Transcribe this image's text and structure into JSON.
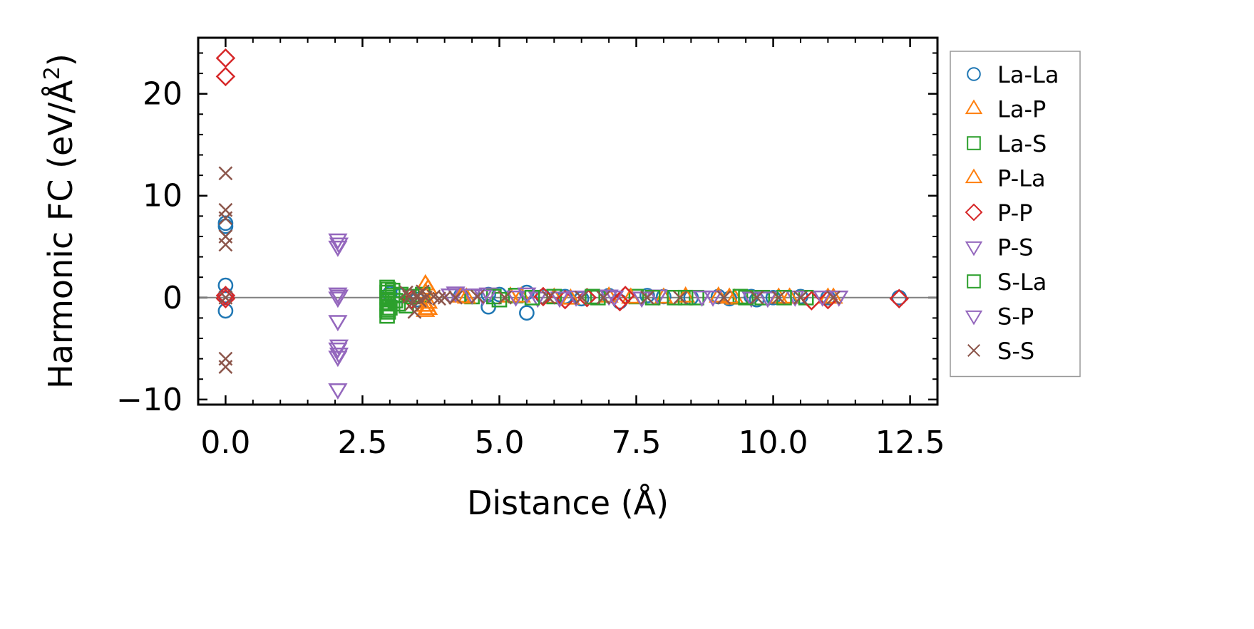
{
  "chart_data": {
    "type": "scatter",
    "title": "",
    "xlabel": "Distance (Å)",
    "ylabel_main": "Harmonic FC (eV/Å",
    "ylabel_sup": "2",
    "ylabel_end": ")",
    "xlim": [
      -0.5,
      13.0
    ],
    "ylim": [
      -10.5,
      25.5
    ],
    "xticks": [
      0.0,
      2.5,
      5.0,
      7.5,
      10.0,
      12.5
    ],
    "xtick_labels": [
      "0.0",
      "2.5",
      "5.0",
      "7.5",
      "10.0",
      "12.5"
    ],
    "yticks": [
      -10,
      0,
      10,
      20
    ],
    "ytick_labels": [
      "−10",
      "0",
      "10",
      "20"
    ],
    "zero_line": true,
    "grid": false,
    "legend_position": "outside-right",
    "series": [
      {
        "name": "La-La",
        "marker": "circle",
        "color": "#1f77b4",
        "points": [
          [
            0,
            7.3
          ],
          [
            0,
            7.0
          ],
          [
            0,
            1.2
          ],
          [
            0,
            0.2
          ],
          [
            0,
            -1.3
          ],
          [
            3.0,
            0.4
          ],
          [
            3.2,
            0.2
          ],
          [
            3.5,
            -0.2
          ],
          [
            4.3,
            0.2
          ],
          [
            4.8,
            0.3
          ],
          [
            4.8,
            -0.9
          ],
          [
            5.0,
            0.3
          ],
          [
            5.5,
            0.5
          ],
          [
            5.5,
            -1.5
          ],
          [
            5.8,
            0.1
          ],
          [
            6.2,
            0.1
          ],
          [
            6.5,
            -0.1
          ],
          [
            7.0,
            0.2
          ],
          [
            7.2,
            -0.4
          ],
          [
            7.7,
            0.2
          ],
          [
            8.0,
            0.1
          ],
          [
            8.5,
            0.0
          ],
          [
            9.0,
            0.1
          ],
          [
            9.2,
            -0.1
          ],
          [
            9.6,
            0.1
          ],
          [
            9.7,
            -0.2
          ],
          [
            10.0,
            0.0
          ],
          [
            10.5,
            0.1
          ],
          [
            11.0,
            0.0
          ],
          [
            12.3,
            0.0
          ]
        ]
      },
      {
        "name": "La-P",
        "marker": "triangle-up",
        "color": "#ff7f0e",
        "points": [
          [
            3.65,
            1.3
          ],
          [
            3.65,
            0.5
          ],
          [
            3.65,
            -0.8
          ],
          [
            3.65,
            -1.3
          ],
          [
            4.3,
            0.1
          ],
          [
            5.2,
            0.1
          ],
          [
            6.0,
            0.0
          ],
          [
            7.0,
            0.1
          ],
          [
            8.0,
            0.0
          ],
          [
            9.0,
            0.1
          ],
          [
            9.3,
            -0.1
          ],
          [
            10.3,
            0.0
          ],
          [
            11.0,
            0.0
          ]
        ]
      },
      {
        "name": "La-S",
        "marker": "square",
        "color": "#2ca02c",
        "points": [
          [
            2.95,
            1.0
          ],
          [
            2.95,
            0.5
          ],
          [
            2.95,
            0.0
          ],
          [
            2.95,
            -0.6
          ],
          [
            2.95,
            -1.2
          ],
          [
            2.95,
            -1.8
          ],
          [
            3.0,
            -1.0
          ],
          [
            3.05,
            0.7
          ],
          [
            3.1,
            -0.3
          ],
          [
            3.2,
            0.3
          ],
          [
            3.3,
            -0.8
          ],
          [
            3.6,
            0.3
          ],
          [
            4.5,
            0.1
          ],
          [
            5.0,
            -0.2
          ],
          [
            5.3,
            0.2
          ],
          [
            6.0,
            0.1
          ],
          [
            6.8,
            0.0
          ],
          [
            7.5,
            0.1
          ],
          [
            8.2,
            0.0
          ],
          [
            8.6,
            0.0
          ],
          [
            9.4,
            0.1
          ],
          [
            9.8,
            0.0
          ],
          [
            10.6,
            0.0
          ]
        ]
      },
      {
        "name": "P-La",
        "marker": "triangle-up",
        "color": "#ff7f0e",
        "points": [
          [
            3.7,
            0.9
          ],
          [
            3.7,
            -0.5
          ],
          [
            3.7,
            -1.1
          ],
          [
            4.4,
            0.0
          ],
          [
            5.4,
            0.1
          ],
          [
            6.3,
            -0.1
          ],
          [
            7.4,
            0.0
          ],
          [
            8.4,
            0.1
          ],
          [
            9.2,
            0.0
          ],
          [
            10.1,
            0.0
          ],
          [
            11.1,
            0.0
          ]
        ]
      },
      {
        "name": "P-P",
        "marker": "diamond",
        "color": "#d62728",
        "points": [
          [
            0,
            23.5
          ],
          [
            0,
            21.7
          ],
          [
            0,
            0.2
          ],
          [
            0,
            -0.1
          ],
          [
            3.4,
            -0.2
          ],
          [
            5.8,
            0.1
          ],
          [
            6.2,
            -0.2
          ],
          [
            6.6,
            0.0
          ],
          [
            7.2,
            -0.4
          ],
          [
            7.3,
            0.2
          ],
          [
            10.7,
            -0.3
          ],
          [
            11.0,
            -0.2
          ],
          [
            12.3,
            -0.1
          ]
        ]
      },
      {
        "name": "P-S",
        "marker": "triangle-down",
        "color": "#9467bd",
        "points": [
          [
            2.05,
            5.7
          ],
          [
            2.05,
            5.0
          ],
          [
            2.05,
            0.4
          ],
          [
            2.05,
            0.0
          ],
          [
            2.05,
            -2.3
          ],
          [
            2.05,
            -5.0
          ],
          [
            2.05,
            -5.8
          ],
          [
            2.05,
            -9.0
          ],
          [
            4.2,
            0.5
          ],
          [
            4.5,
            0.3
          ],
          [
            4.8,
            0.4
          ],
          [
            5.3,
            0.1
          ],
          [
            5.7,
            0.0
          ],
          [
            6.4,
            0.1
          ],
          [
            7.1,
            0.1
          ],
          [
            7.9,
            0.2
          ],
          [
            8.9,
            0.1
          ],
          [
            9.6,
            0.0
          ],
          [
            10.4,
            0.1
          ],
          [
            11.2,
            0.1
          ]
        ]
      },
      {
        "name": "S-La",
        "marker": "square",
        "color": "#2ca02c",
        "points": [
          [
            2.97,
            0.8
          ],
          [
            2.97,
            -0.2
          ],
          [
            2.97,
            -1.4
          ],
          [
            3.05,
            0.2
          ],
          [
            3.15,
            -0.6
          ],
          [
            3.4,
            0.1
          ],
          [
            4.9,
            0.1
          ],
          [
            5.6,
            0.0
          ],
          [
            6.7,
            0.1
          ],
          [
            7.8,
            0.0
          ],
          [
            8.4,
            0.0
          ],
          [
            9.5,
            0.0
          ],
          [
            10.2,
            0.0
          ]
        ]
      },
      {
        "name": "S-P",
        "marker": "triangle-down",
        "color": "#9467bd",
        "points": [
          [
            2.07,
            5.3
          ],
          [
            2.07,
            0.2
          ],
          [
            2.07,
            -4.7
          ],
          [
            2.07,
            -5.5
          ],
          [
            4.1,
            0.3
          ],
          [
            4.7,
            0.2
          ],
          [
            5.5,
            0.4
          ],
          [
            6.1,
            0.0
          ],
          [
            7.0,
            0.2
          ],
          [
            7.6,
            0.0
          ],
          [
            8.7,
            0.1
          ],
          [
            9.9,
            0.0
          ],
          [
            10.9,
            0.1
          ]
        ]
      },
      {
        "name": "S-S",
        "marker": "x",
        "color": "#8c564b",
        "points": [
          [
            0,
            12.2
          ],
          [
            0,
            8.6
          ],
          [
            0,
            7.8
          ],
          [
            0,
            6.0
          ],
          [
            0,
            5.2
          ],
          [
            0,
            0.0
          ],
          [
            0,
            -6.0
          ],
          [
            0,
            -6.8
          ],
          [
            3.3,
            0.5
          ],
          [
            3.35,
            0.1
          ],
          [
            3.4,
            -0.6
          ],
          [
            3.45,
            -1.4
          ],
          [
            3.5,
            0.2
          ],
          [
            3.55,
            -0.3
          ],
          [
            3.6,
            0.6
          ],
          [
            3.65,
            0.0
          ],
          [
            3.8,
            0.1
          ],
          [
            3.9,
            -0.1
          ],
          [
            4.0,
            0.0
          ],
          [
            4.2,
            0.0
          ],
          [
            4.6,
            0.1
          ],
          [
            5.1,
            0.0
          ],
          [
            5.9,
            0.0
          ],
          [
            6.5,
            0.0
          ],
          [
            6.9,
            0.0
          ],
          [
            7.7,
            0.0
          ],
          [
            8.3,
            0.0
          ],
          [
            9.1,
            0.0
          ],
          [
            9.7,
            0.0
          ],
          [
            10.1,
            0.0
          ],
          [
            10.5,
            0.0
          ],
          [
            11.1,
            0.0
          ]
        ]
      }
    ]
  }
}
